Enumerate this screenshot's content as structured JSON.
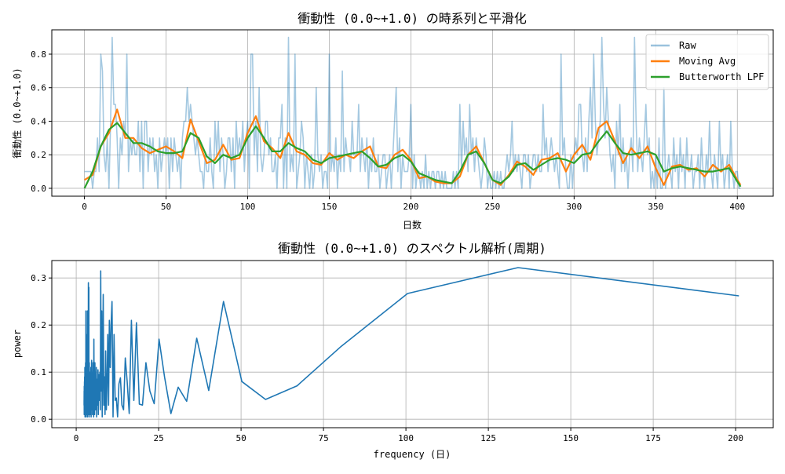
{
  "chart_data": [
    {
      "type": "line",
      "title": "衝動性 (0.0~+1.0) の時系列と平滑化",
      "xlabel": "日数",
      "ylabel": "衝動性 (0.0~+1.0)",
      "xlim": [
        -20,
        422
      ],
      "ylim": [
        -0.047,
        0.945
      ],
      "xticks": [
        0,
        50,
        100,
        150,
        200,
        250,
        300,
        350,
        400
      ],
      "yticks": [
        0.0,
        0.2,
        0.4,
        0.6,
        0.8
      ],
      "grid": true,
      "legend": "top-right",
      "series": [
        {
          "name": "Raw",
          "color": "#1f77b4",
          "alpha": 0.4,
          "values": [
            0.1,
            0.1,
            0.1,
            0.1,
            0.1,
            0.0,
            0.1,
            0.1,
            0.3,
            0.1,
            0.8,
            0.7,
            0.2,
            0.1,
            0.3,
            0.0,
            0.4,
            0.9,
            0.5,
            0.5,
            0.3,
            0.0,
            0.3,
            0.2,
            0.4,
            0.3,
            0.8,
            0.1,
            0.3,
            0.2,
            0.3,
            0.2,
            0.2,
            0.4,
            0.1,
            0.4,
            0.0,
            0.4,
            0.4,
            0.1,
            0.3,
            0.2,
            0.3,
            0.1,
            0.2,
            0.0,
            0.3,
            0.1,
            0.2,
            0.3,
            0.2,
            0.3,
            0.0,
            0.3,
            0.1,
            0.3,
            0.2,
            0.1,
            0.2,
            0.0,
            0.3,
            0.4,
            0.4,
            0.6,
            0.4,
            0.5,
            0.4,
            0.3,
            0.2,
            0.3,
            0.2,
            0.1,
            0.1,
            0.0,
            0.2,
            0.1,
            0.1,
            0.3,
            0.1,
            0.0,
            0.4,
            0.2,
            0.4,
            0.1,
            0.3,
            0.2,
            0.0,
            0.1,
            0.3,
            0.3,
            0.1,
            0.3,
            0.0,
            0.4,
            0.2,
            0.3,
            0.2,
            0.4,
            0.1,
            0.3,
            0.4,
            0.0,
            0.8,
            0.8,
            0.2,
            0.4,
            0.1,
            0.6,
            0.2,
            0.1,
            0.2,
            0.4,
            0.4,
            0.2,
            0.3,
            0.1,
            0.1,
            0.2,
            0.0,
            0.3,
            0.3,
            0.5,
            0.0,
            0.3,
            0.0,
            0.9,
            0.1,
            0.2,
            0.1,
            0.8,
            0.0,
            0.1,
            0.2,
            0.4,
            0.3,
            0.0,
            0.2,
            0.1,
            0.0,
            0.2,
            0.0,
            0.1,
            0.6,
            0.2,
            0.1,
            0.2,
            0.0,
            0.1,
            0.1,
            0.0,
            0.8,
            0.1,
            0.2,
            0.1,
            0.3,
            0.0,
            0.2,
            0.1,
            0.7,
            0.1,
            0.3,
            0.2,
            0.2,
            0.1,
            0.4,
            0.2,
            0.2,
            0.2,
            0.5,
            0.1,
            0.3,
            0.2,
            0.1,
            0.3,
            0.0,
            0.2,
            0.1,
            0.3,
            0.1,
            0.1,
            0.2,
            0.0,
            0.1,
            0.2,
            0.2,
            0.0,
            0.1,
            0.2,
            0.0,
            0.2,
            0.4,
            0.6,
            0.1,
            0.3,
            0.0,
            0.2,
            0.1,
            0.1,
            0.1,
            0.2,
            0.5,
            0.0,
            0.2,
            0.0,
            0.1,
            0.1,
            0.0,
            0.1,
            0.0,
            0.2,
            0.0,
            0.1,
            0.0,
            0.1,
            0.1,
            0.0,
            0.1,
            0.1,
            0.0,
            0.1,
            0.0,
            0.1,
            0.0,
            0.0,
            0.0,
            0.0,
            0.1,
            0.0,
            0.1,
            0.0,
            0.5,
            0.1,
            0.4,
            0.2,
            0.3,
            0.1,
            0.5,
            0.2,
            0.3,
            0.1,
            0.3,
            0.2,
            0.1,
            0.0,
            0.1,
            0.3,
            0.2,
            0.0,
            0.1,
            0.0,
            0.0,
            0.1,
            0.0,
            0.1,
            0.0,
            0.1,
            0.0,
            0.0,
            0.1,
            0.2,
            0.1,
            0.2,
            0.4,
            0.1,
            0.2,
            0.1,
            0.2,
            0.1,
            0.0,
            0.2,
            0.2,
            0.1,
            0.2,
            0.0,
            0.1,
            0.2,
            0.2,
            0.1,
            0.2,
            0.1,
            0.1,
            0.5,
            0.2,
            0.3,
            0.1,
            0.2,
            0.3,
            0.2,
            0.1,
            0.2,
            0.1,
            0.0,
            0.8,
            0.2,
            0.3,
            0.1,
            0.0,
            0.0,
            0.2,
            0.0,
            0.2,
            0.3,
            0.2,
            0.5,
            0.5,
            0.2,
            0.1,
            0.3,
            0.1,
            0.4,
            0.6,
            0.3,
            0.8,
            0.4,
            0.2,
            0.3,
            0.4,
            0.9,
            0.5,
            0.3,
            0.6,
            0.4,
            0.2,
            0.1,
            0.2,
            0.0,
            0.4,
            0.2,
            0.5,
            0.1,
            0.3,
            0.1,
            0.2,
            0.0,
            0.2,
            0.3,
            0.1,
            0.9,
            0.4,
            0.1,
            0.3,
            0.2,
            0.1,
            0.3,
            0.5,
            0.2,
            0.3,
            0.0,
            0.1,
            0.0,
            0.2,
            0.0,
            0.3,
            0.0,
            0.0,
            0.6,
            0.0,
            0.1,
            0.2,
            0.1,
            0.0,
            0.3,
            0.1,
            0.2,
            0.0,
            0.3,
            0.1,
            0.2,
            0.0,
            0.3,
            0.1,
            0.1,
            0.2,
            0.0,
            0.1,
            0.1,
            0.2,
            0.0,
            0.3,
            0.1,
            0.0,
            0.2,
            0.1,
            0.4,
            0.1,
            0.0,
            0.2,
            0.1,
            0.0,
            0.4,
            0.1,
            0.2,
            0.0,
            0.1,
            0.2,
            0.0,
            0.4,
            0.1,
            0.0,
            0.1,
            0.1,
            0.0,
            0.0
          ]
        },
        {
          "name": "Moving Avg",
          "color": "#ff7f0e",
          "x": [
            0,
            5,
            10,
            15,
            20,
            25,
            30,
            35,
            40,
            45,
            50,
            55,
            60,
            65,
            70,
            75,
            80,
            85,
            90,
            95,
            100,
            105,
            110,
            115,
            120,
            125,
            130,
            135,
            140,
            145,
            150,
            155,
            160,
            165,
            170,
            175,
            180,
            185,
            190,
            195,
            200,
            205,
            210,
            215,
            220,
            225,
            230,
            235,
            240,
            245,
            250,
            255,
            260,
            265,
            270,
            275,
            280,
            285,
            290,
            295,
            300,
            305,
            310,
            315,
            320,
            325,
            330,
            335,
            340,
            345,
            350,
            355,
            360,
            365,
            370,
            375,
            380,
            385,
            390,
            395,
            400,
            402
          ],
          "values": [
            0.05,
            0.08,
            0.25,
            0.33,
            0.47,
            0.3,
            0.3,
            0.24,
            0.21,
            0.23,
            0.25,
            0.22,
            0.18,
            0.41,
            0.28,
            0.15,
            0.17,
            0.26,
            0.17,
            0.18,
            0.33,
            0.43,
            0.28,
            0.24,
            0.18,
            0.33,
            0.22,
            0.2,
            0.15,
            0.14,
            0.21,
            0.17,
            0.2,
            0.18,
            0.22,
            0.25,
            0.13,
            0.12,
            0.2,
            0.23,
            0.17,
            0.06,
            0.07,
            0.04,
            0.03,
            0.03,
            0.07,
            0.2,
            0.25,
            0.15,
            0.05,
            0.02,
            0.08,
            0.16,
            0.13,
            0.08,
            0.17,
            0.18,
            0.21,
            0.1,
            0.2,
            0.26,
            0.17,
            0.36,
            0.4,
            0.28,
            0.15,
            0.24,
            0.18,
            0.25,
            0.12,
            0.02,
            0.13,
            0.14,
            0.11,
            0.12,
            0.07,
            0.14,
            0.1,
            0.14,
            0.05,
            0.02
          ]
        },
        {
          "name": "Butterworth LPF",
          "color": "#2ca02c",
          "x": [
            0,
            5,
            10,
            15,
            20,
            25,
            30,
            35,
            40,
            45,
            50,
            55,
            60,
            65,
            70,
            75,
            80,
            85,
            90,
            95,
            100,
            105,
            110,
            115,
            120,
            125,
            130,
            135,
            140,
            145,
            150,
            155,
            160,
            165,
            170,
            175,
            180,
            185,
            190,
            195,
            200,
            205,
            210,
            215,
            220,
            225,
            230,
            235,
            240,
            245,
            250,
            255,
            260,
            265,
            270,
            275,
            280,
            285,
            290,
            295,
            300,
            305,
            310,
            315,
            320,
            325,
            330,
            335,
            340,
            345,
            350,
            355,
            360,
            365,
            370,
            375,
            380,
            385,
            390,
            395,
            400,
            402
          ],
          "values": [
            0.0,
            0.1,
            0.25,
            0.35,
            0.39,
            0.33,
            0.27,
            0.27,
            0.25,
            0.22,
            0.21,
            0.21,
            0.22,
            0.33,
            0.3,
            0.19,
            0.15,
            0.2,
            0.18,
            0.2,
            0.3,
            0.37,
            0.3,
            0.22,
            0.22,
            0.27,
            0.24,
            0.22,
            0.17,
            0.15,
            0.18,
            0.19,
            0.2,
            0.21,
            0.22,
            0.18,
            0.13,
            0.14,
            0.18,
            0.2,
            0.16,
            0.09,
            0.07,
            0.05,
            0.04,
            0.03,
            0.1,
            0.2,
            0.22,
            0.15,
            0.05,
            0.03,
            0.07,
            0.14,
            0.15,
            0.11,
            0.14,
            0.17,
            0.18,
            0.17,
            0.15,
            0.2,
            0.21,
            0.28,
            0.34,
            0.27,
            0.21,
            0.2,
            0.21,
            0.22,
            0.2,
            0.1,
            0.12,
            0.13,
            0.12,
            0.11,
            0.1,
            0.1,
            0.11,
            0.12,
            0.04,
            0.01
          ]
        }
      ]
    },
    {
      "type": "line",
      "title": "衝動性 (0.0~+1.0) のスペクトル解析(周期)",
      "xlabel": "frequency (日)",
      "ylabel": "power",
      "xlim": [
        -7.4,
        211.4
      ],
      "ylim": [
        -0.018,
        0.337
      ],
      "xticks": [
        0,
        25,
        50,
        75,
        100,
        125,
        150,
        175,
        200
      ],
      "yticks": [
        0.0,
        0.1,
        0.2,
        0.3
      ],
      "grid": true,
      "series": [
        {
          "color": "#1f77b4",
          "x_formula_total_days": 402,
          "k_start": 2,
          "values": [
            0.262,
            0.322,
            0.267,
            0.155,
            0.071,
            0.042,
            0.08,
            0.25,
            0.061,
            0.172,
            0.038,
            0.068,
            0.012,
            0.09,
            0.17,
            0.033,
            0.06,
            0.12,
            0.03,
            0.032,
            0.205,
            0.04,
            0.21,
            0.012,
            0.08,
            0.13,
            0.02,
            0.03,
            0.088,
            0.075,
            0.005,
            0.045,
            0.04,
            0.18,
            0.005,
            0.25,
            0.2,
            0.11,
            0.21,
            0.03,
            0.18,
            0.07,
            0.02,
            0.145,
            0.01,
            0.09,
            0.03,
            0.265,
            0.12,
            0.005,
            0.23,
            0.06,
            0.315,
            0.02,
            0.1,
            0.07,
            0.04,
            0.095,
            0.01,
            0.105,
            0.03,
            0.06,
            0.085,
            0.005,
            0.11,
            0.04,
            0.1,
            0.02,
            0.07,
            0.12,
            0.01,
            0.09,
            0.05,
            0.17,
            0.005,
            0.08,
            0.03,
            0.12,
            0.06,
            0.01,
            0.1,
            0.04,
            0.08,
            0.02,
            0.125,
            0.03,
            0.07,
            0.005,
            0.11,
            0.05,
            0.09,
            0.02,
            0.06,
            0.1,
            0.01,
            0.08,
            0.04,
            0.07,
            0.03,
            0.12,
            0.005,
            0.09,
            0.05,
            0.28,
            0.02,
            0.11,
            0.06,
            0.29,
            0.01,
            0.08,
            0.13,
            0.03,
            0.09,
            0.2,
            0.005,
            0.1,
            0.04,
            0.23,
            0.02,
            0.07,
            0.18,
            0.03,
            0.12,
            0.05,
            0.1,
            0.01,
            0.09,
            0.04,
            0.15,
            0.02,
            0.06,
            0.11,
            0.005,
            0.08,
            0.03,
            0.23,
            0.05,
            0.1,
            0.02,
            0.07,
            0.12,
            0.01,
            0.09,
            0.04,
            0.06,
            0.02,
            0.1,
            0.03,
            0.08,
            0.005,
            0.05,
            0.11,
            0.02,
            0.07,
            0.04,
            0.09,
            0.01,
            0.06,
            0.03,
            0.08,
            0.02,
            0.05,
            0.04,
            0.07,
            0.01,
            0.06,
            0.03,
            0.04
          ]
        }
      ]
    }
  ]
}
